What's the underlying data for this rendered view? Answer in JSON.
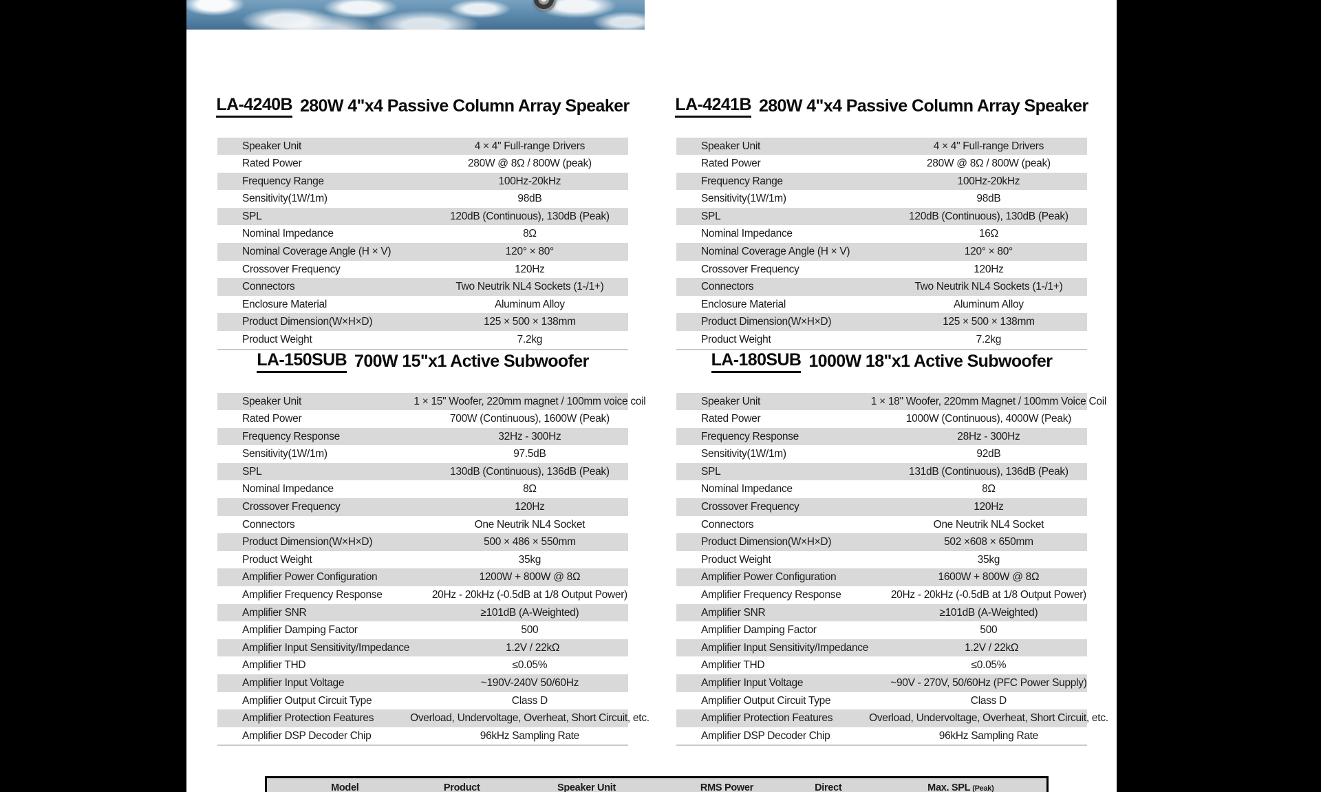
{
  "banner": {
    "name": "water-splash-photo"
  },
  "colors": {
    "canvas_bg": "#000000",
    "page_bg": "#ffffff",
    "row_stripe": "#d9d9d9",
    "text": "#1b1b1b",
    "water_blue": "#5d8cae"
  },
  "tables": [
    {
      "model": "LA-4240B",
      "title": "280W 4\"x4 Passive Column Array Speaker",
      "rows": [
        [
          "Speaker Unit",
          "4 × 4\" Full-range Drivers"
        ],
        [
          "Rated Power",
          "280W @ 8Ω / 800W (peak)"
        ],
        [
          "Frequency Range",
          "100Hz-20kHz"
        ],
        [
          "Sensitivity(1W/1m)",
          "98dB"
        ],
        [
          "SPL",
          "120dB (Continuous), 130dB (Peak)"
        ],
        [
          "Nominal Impedance",
          "8Ω"
        ],
        [
          "Nominal Coverage Angle (H × V)",
          "120° × 80°"
        ],
        [
          "Crossover Frequency",
          "120Hz"
        ],
        [
          "Connectors",
          "Two Neutrik NL4 Sockets (1-/1+)"
        ],
        [
          "Enclosure Material",
          "Aluminum Alloy"
        ],
        [
          "Product Dimension(W×H×D)",
          "125 × 500 × 138mm"
        ],
        [
          "Product Weight",
          "7.2kg"
        ]
      ]
    },
    {
      "model": "LA-4241B",
      "title": "280W 4\"x4 Passive Column Array Speaker",
      "rows": [
        [
          "Speaker Unit",
          "4 × 4\" Full-range Drivers"
        ],
        [
          "Rated Power",
          "280W @ 8Ω / 800W (peak)"
        ],
        [
          "Frequency Range",
          "100Hz-20kHz"
        ],
        [
          "Sensitivity(1W/1m)",
          "98dB"
        ],
        [
          "SPL",
          "120dB (Continuous), 130dB (Peak)"
        ],
        [
          "Nominal Impedance",
          "16Ω"
        ],
        [
          "Nominal Coverage Angle (H × V)",
          "120° × 80°"
        ],
        [
          "Crossover Frequency",
          "120Hz"
        ],
        [
          "Connectors",
          "Two Neutrik NL4 Sockets (1-/1+)"
        ],
        [
          "Enclosure Material",
          "Aluminum Alloy"
        ],
        [
          "Product Dimension(W×H×D)",
          "125 × 500 × 138mm"
        ],
        [
          "Product Weight",
          "7.2kg"
        ]
      ]
    },
    {
      "model": "LA-150SUB",
      "title": "700W 15\"x1 Active Subwoofer",
      "rows": [
        [
          "Speaker Unit",
          "1 × 15\" Woofer, 220mm magnet / 100mm voice coil"
        ],
        [
          "Rated Power",
          "700W (Continuous), 1600W (Peak)"
        ],
        [
          "Frequency Response",
          "32Hz - 300Hz"
        ],
        [
          "Sensitivity(1W/1m)",
          "97.5dB"
        ],
        [
          "SPL",
          "130dB (Continuous), 136dB (Peak)"
        ],
        [
          "Nominal Impedance",
          "8Ω"
        ],
        [
          "Crossover Frequency",
          "120Hz"
        ],
        [
          "Connectors",
          "One Neutrik NL4 Socket"
        ],
        [
          "Product Dimension(W×H×D)",
          "500 × 486 × 550mm"
        ],
        [
          "Product Weight",
          "35kg"
        ],
        [
          "Amplifier Power Configuration",
          "1200W + 800W @ 8Ω"
        ],
        [
          "Amplifier Frequency Response",
          "20Hz - 20kHz (-0.5dB at 1/8 Output Power)"
        ],
        [
          "Amplifier SNR",
          "≥101dB (A-Weighted)"
        ],
        [
          "Amplifier Damping Factor",
          "500"
        ],
        [
          "Amplifier Input Sensitivity/Impedance",
          "1.2V / 22kΩ"
        ],
        [
          "Amplifier THD",
          "≤0.05%"
        ],
        [
          "Amplifier Input Voltage",
          "~190V-240V 50/60Hz"
        ],
        [
          "Amplifier Output Circuit Type",
          "Class D"
        ],
        [
          "Amplifier Protection Features",
          "Overload, Undervoltage, Overheat, Short Circuit, etc."
        ],
        [
          "Amplifier DSP Decoder Chip",
          "96kHz Sampling Rate"
        ]
      ]
    },
    {
      "model": "LA-180SUB",
      "title": "1000W 18\"x1 Active Subwoofer",
      "rows": [
        [
          "Speaker Unit",
          "1 × 18\" Woofer, 220mm Magnet / 100mm Voice Coil"
        ],
        [
          "Rated Power",
          "1000W (Continuous), 4000W (Peak)"
        ],
        [
          "Frequency Response",
          "28Hz - 300Hz"
        ],
        [
          "Sensitivity(1W/1m)",
          "92dB"
        ],
        [
          "SPL",
          "131dB (Continuous), 136dB (Peak)"
        ],
        [
          "Nominal Impedance",
          "8Ω"
        ],
        [
          "Crossover Frequency",
          "120Hz"
        ],
        [
          "Connectors",
          "One Neutrik NL4 Socket"
        ],
        [
          "Product Dimension(W×H×D)",
          "502 ×608 × 650mm"
        ],
        [
          "Product Weight",
          "35kg"
        ],
        [
          "Amplifier Power Configuration",
          "1600W + 800W @ 8Ω"
        ],
        [
          "Amplifier Frequency Response",
          "20Hz - 20kHz (-0.5dB at 1/8 Output Power)"
        ],
        [
          "Amplifier SNR",
          "≥101dB (A-Weighted)"
        ],
        [
          "Amplifier Damping Factor",
          "500"
        ],
        [
          "Amplifier Input Sensitivity/Impedance",
          "1.2V / 22kΩ"
        ],
        [
          "Amplifier THD",
          "≤0.05%"
        ],
        [
          "Amplifier Input Voltage",
          "~90V - 270V, 50/60Hz (PFC Power Supply)"
        ],
        [
          "Amplifier Output Circuit Type",
          "Class D"
        ],
        [
          "Amplifier Protection Features",
          "Overload, Undervoltage, Overheat, Short Circuit, etc."
        ],
        [
          "Amplifier DSP Decoder Chip",
          "96kHz Sampling Rate"
        ]
      ]
    }
  ],
  "summary_table": {
    "headers": [
      {
        "label": "Model"
      },
      {
        "label": "Product"
      },
      {
        "label": "Speaker Unit"
      },
      {
        "label": "RMS Power"
      },
      {
        "label": "Direct"
      },
      {
        "label": "Max. SPL",
        "suffix": "(Peak)"
      }
    ]
  }
}
